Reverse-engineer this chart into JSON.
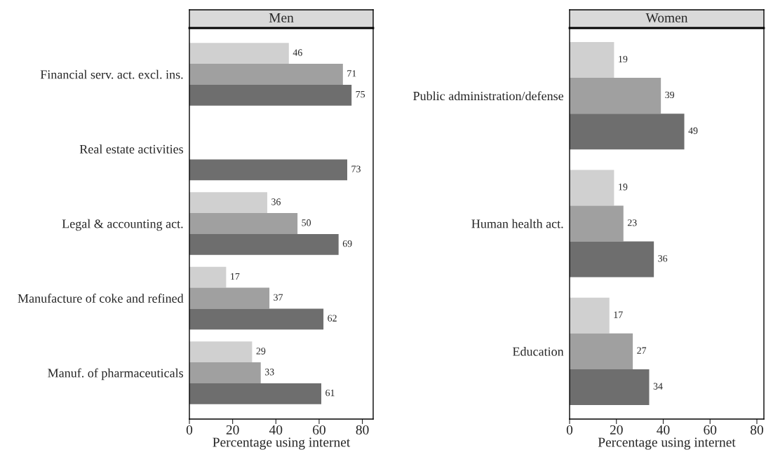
{
  "chart_data": [
    {
      "type": "bar",
      "title": "Men",
      "orientation": "horizontal",
      "xlabel": "Percentage using internet",
      "categories": [
        "Financial serv. act. excl. ins.",
        "Real estate activities",
        "Legal & accounting act.",
        "Manufacture of coke and refined",
        "Manuf. of pharmaceuticals"
      ],
      "series": [
        {
          "color": "#d0d0d0",
          "values": [
            46,
            null,
            36,
            17,
            29
          ]
        },
        {
          "color": "#a0a0a0",
          "values": [
            71,
            null,
            50,
            37,
            33
          ]
        },
        {
          "color": "#6e6e6e",
          "values": [
            75,
            73,
            69,
            62,
            61
          ]
        }
      ],
      "xlim": [
        0,
        85
      ],
      "xticks": [
        0,
        20,
        40,
        60,
        80
      ],
      "data_labels": true,
      "grid": false,
      "legend": false
    },
    {
      "type": "bar",
      "title": "Women",
      "orientation": "horizontal",
      "xlabel": "Percentage using internet",
      "categories": [
        "Public administration/defense",
        "Human health act.",
        "Education"
      ],
      "series": [
        {
          "color": "#d0d0d0",
          "values": [
            19,
            19,
            17
          ]
        },
        {
          "color": "#a0a0a0",
          "values": [
            39,
            23,
            27
          ]
        },
        {
          "color": "#6e6e6e",
          "values": [
            49,
            36,
            34
          ]
        }
      ],
      "xlim": [
        0,
        83
      ],
      "xticks": [
        0,
        20,
        40,
        60,
        80
      ],
      "data_labels": true,
      "grid": false,
      "legend": false
    }
  ]
}
